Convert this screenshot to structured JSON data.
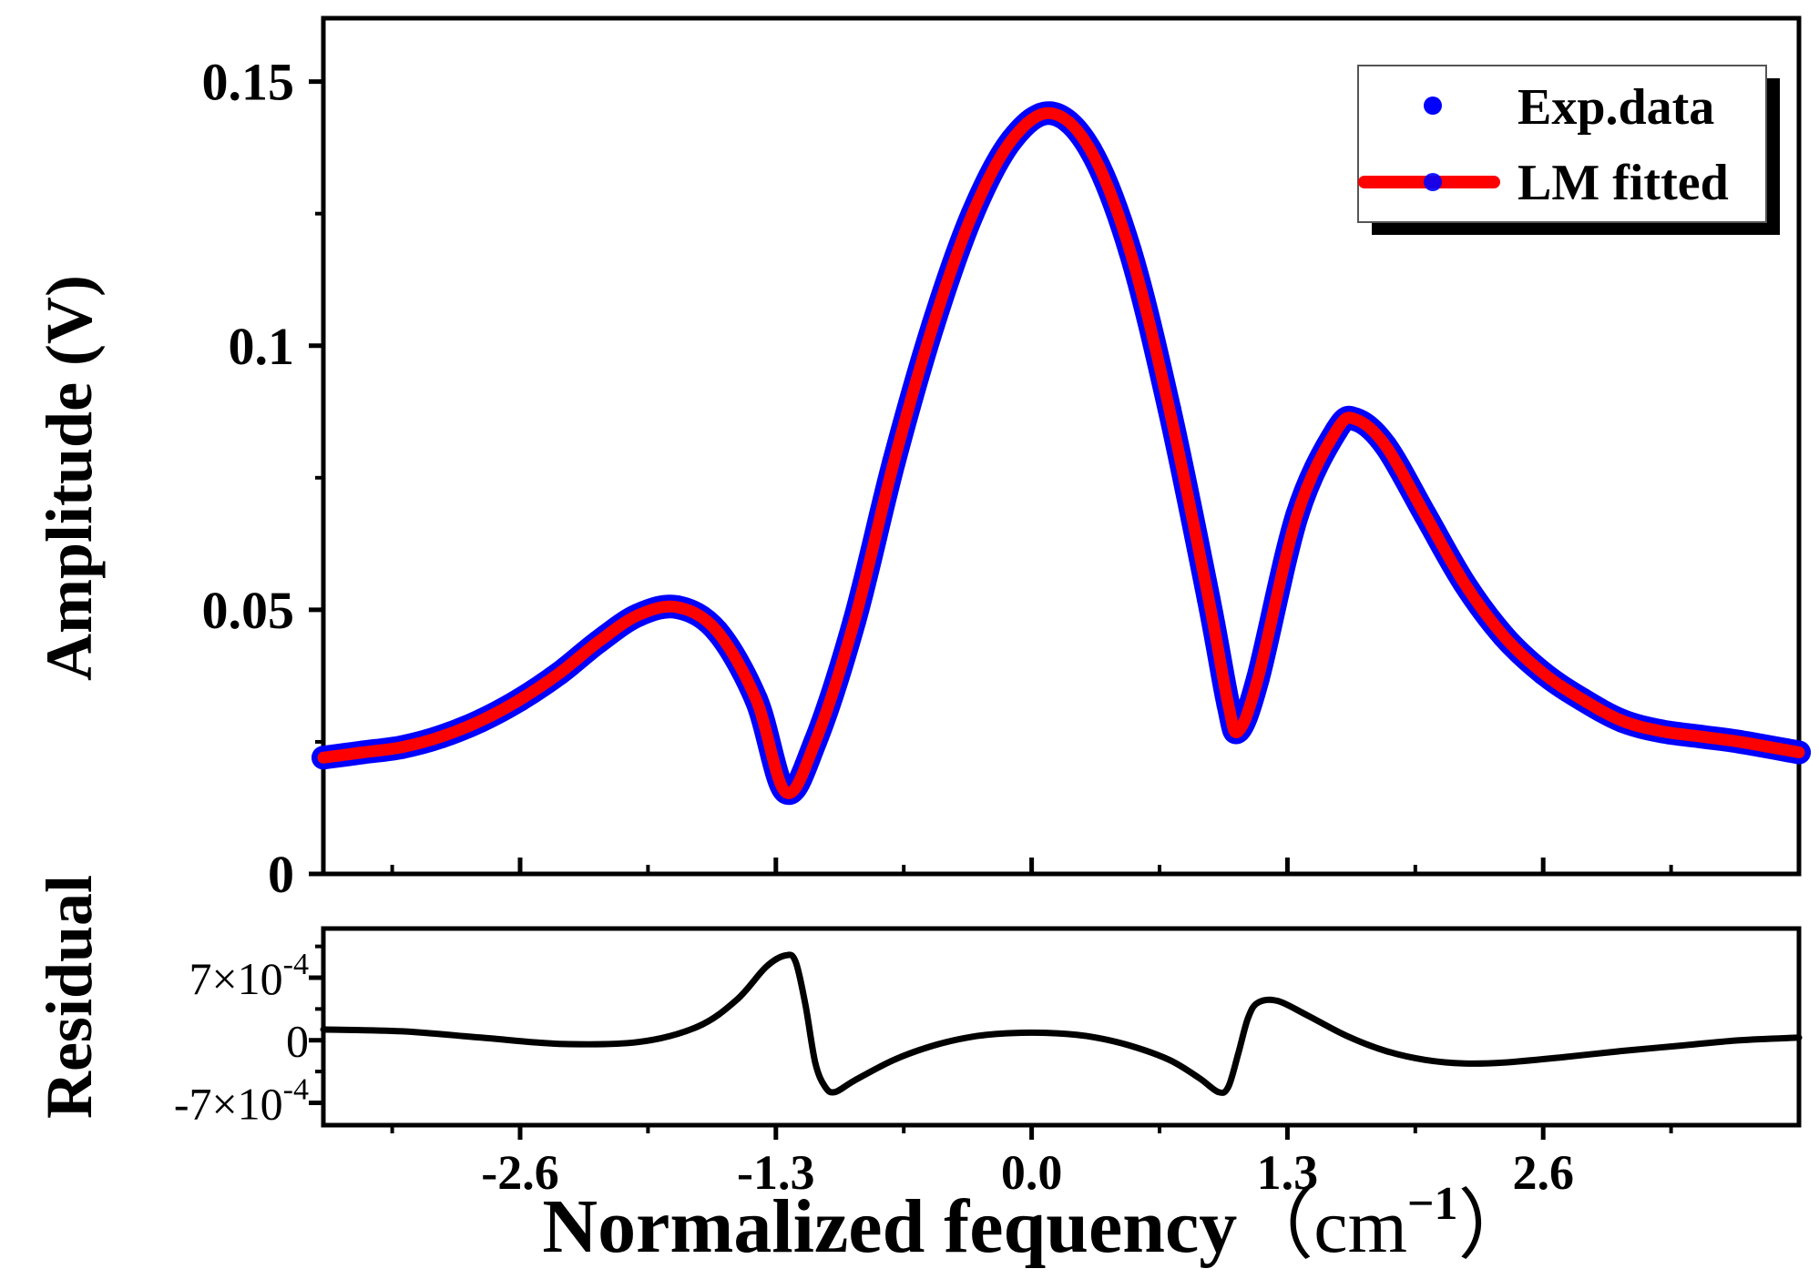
{
  "chart_data": [
    {
      "type": "line",
      "panel": "main",
      "ylabel": "Amplitude (V)",
      "xlabel": "",
      "xlim": [
        -3.6,
        3.9
      ],
      "ylim": [
        0,
        0.162
      ],
      "yticks": [
        0,
        0.05,
        0.1,
        0.15
      ],
      "ytick_labels": [
        "0",
        "0.05",
        "0.1",
        "0.15"
      ],
      "legend_position": "top-right",
      "legend": [
        {
          "label": "Exp.data",
          "style": "markers",
          "color": "#0000ff"
        },
        {
          "label": "LM fitted",
          "style": "line",
          "color": "#ff0000"
        }
      ],
      "series": [
        {
          "name": "Exp.data",
          "color": "#0000ff",
          "x": [
            -3.6,
            -3.4,
            -3.2,
            -3.0,
            -2.8,
            -2.6,
            -2.4,
            -2.2,
            -2.0,
            -1.8,
            -1.6,
            -1.4,
            -1.25,
            -1.1,
            -0.9,
            -0.7,
            -0.5,
            -0.3,
            -0.1,
            0.1,
            0.3,
            0.5,
            0.7,
            0.9,
            1.0,
            1.05,
            1.15,
            1.35,
            1.55,
            1.65,
            1.8,
            2.0,
            2.2,
            2.4,
            2.6,
            2.8,
            3.0,
            3.2,
            3.4,
            3.6,
            3.9
          ],
          "y": [
            0.022,
            0.023,
            0.024,
            0.026,
            0.029,
            0.033,
            0.038,
            0.044,
            0.049,
            0.0505,
            0.046,
            0.033,
            0.0155,
            0.025,
            0.048,
            0.078,
            0.104,
            0.125,
            0.139,
            0.144,
            0.137,
            0.118,
            0.088,
            0.052,
            0.032,
            0.027,
            0.037,
            0.068,
            0.084,
            0.086,
            0.081,
            0.068,
            0.055,
            0.045,
            0.038,
            0.033,
            0.029,
            0.027,
            0.026,
            0.025,
            0.023
          ]
        },
        {
          "name": "LM fitted",
          "color": "#ff0000",
          "x": [
            -3.6,
            -3.4,
            -3.2,
            -3.0,
            -2.8,
            -2.6,
            -2.4,
            -2.2,
            -2.0,
            -1.8,
            -1.6,
            -1.4,
            -1.25,
            -1.1,
            -0.9,
            -0.7,
            -0.5,
            -0.3,
            -0.1,
            0.1,
            0.3,
            0.5,
            0.7,
            0.9,
            1.0,
            1.05,
            1.15,
            1.35,
            1.55,
            1.65,
            1.8,
            2.0,
            2.2,
            2.4,
            2.6,
            2.8,
            3.0,
            3.2,
            3.4,
            3.6,
            3.9
          ],
          "y": [
            0.022,
            0.023,
            0.024,
            0.026,
            0.029,
            0.033,
            0.038,
            0.044,
            0.049,
            0.0505,
            0.046,
            0.033,
            0.0155,
            0.025,
            0.048,
            0.078,
            0.104,
            0.125,
            0.139,
            0.144,
            0.137,
            0.118,
            0.088,
            0.052,
            0.032,
            0.027,
            0.037,
            0.068,
            0.084,
            0.086,
            0.081,
            0.068,
            0.055,
            0.045,
            0.038,
            0.033,
            0.029,
            0.027,
            0.026,
            0.025,
            0.023
          ]
        }
      ]
    },
    {
      "type": "line",
      "panel": "residual",
      "ylabel": "Residual",
      "xlabel_main": "Normalized fequency",
      "xlabel_unit": "（cm",
      "xlabel_sup": "−1",
      "xlabel_close": "）",
      "xlim": [
        -3.6,
        3.9
      ],
      "ylim": [
        -0.00095,
        0.00125
      ],
      "yticks": [
        -0.0007,
        0,
        0.0007
      ],
      "ytick_labels": [
        {
          "base": "-7×10",
          "exp": "-4"
        },
        {
          "base": "0",
          "exp": ""
        },
        {
          "base": "7×10",
          "exp": "-4"
        }
      ],
      "xticks": [
        -2.6,
        -1.3,
        0.0,
        1.3,
        2.6
      ],
      "xtick_labels": [
        "-2.6",
        "-1.3",
        "0.0",
        "1.3",
        "2.6"
      ],
      "series": [
        {
          "name": "Residual",
          "color": "#000000",
          "x": [
            -3.6,
            -3.2,
            -2.8,
            -2.4,
            -2.0,
            -1.7,
            -1.5,
            -1.35,
            -1.25,
            -1.2,
            -1.15,
            -1.1,
            -1.05,
            -1.0,
            -0.9,
            -0.7,
            -0.5,
            -0.3,
            -0.1,
            0.1,
            0.3,
            0.5,
            0.7,
            0.85,
            0.95,
            1.0,
            1.05,
            1.1,
            1.15,
            1.25,
            1.4,
            1.6,
            1.8,
            2.0,
            2.2,
            2.4,
            2.7,
            3.0,
            3.3,
            3.6,
            3.9
          ],
          "y": [
            0.00012,
            0.0001,
            3e-05,
            -4e-05,
            -2e-05,
            0.00015,
            0.00045,
            0.00082,
            0.00095,
            0.00088,
            0.0004,
            -0.00025,
            -0.00052,
            -0.00058,
            -0.00045,
            -0.00022,
            -6e-05,
            4e-05,
            8e-05,
            8e-05,
            4e-05,
            -6e-05,
            -0.00022,
            -0.00042,
            -0.00058,
            -0.00052,
            -0.00015,
            0.00025,
            0.00042,
            0.00044,
            0.00028,
            5e-05,
            -0.00012,
            -0.00022,
            -0.00026,
            -0.00025,
            -0.00019,
            -0.00012,
            -6e-05,
            0.0,
            3e-05
          ]
        }
      ]
    }
  ]
}
